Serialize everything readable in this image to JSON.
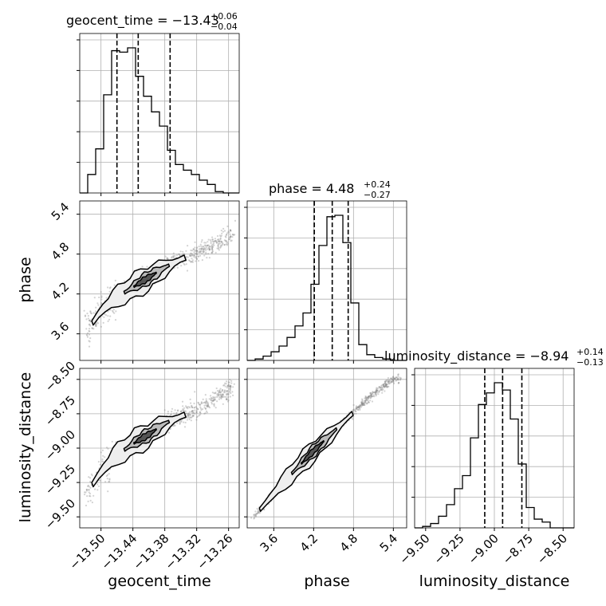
{
  "chart_data": {
    "type": "corner",
    "parameters": [
      "geocent_time",
      "phase",
      "luminosity_distance"
    ],
    "titles": [
      {
        "text": "geocent_time = −13.43",
        "sup": "+0.06",
        "sub": "−0.04"
      },
      {
        "text": "phase = 4.48",
        "sup": "+0.24",
        "sub": "−0.27"
      },
      {
        "text": "luminosity_distance = −8.94",
        "sup": "+0.14",
        "sub": "−0.13"
      }
    ],
    "axis_labels": {
      "geocent_time": "geocent_time",
      "phase": "phase",
      "luminosity_distance": "luminosity_distance"
    },
    "ranges": {
      "geocent_time": [
        -13.54,
        -13.24
      ],
      "phase": [
        3.2,
        5.6
      ],
      "luminosity_distance": [
        -9.58,
        -8.42
      ]
    },
    "ticks": {
      "geocent_time": [
        -13.5,
        -13.44,
        -13.38,
        -13.32,
        -13.26
      ],
      "phase": [
        3.6,
        4.2,
        4.8,
        5.4
      ],
      "luminosity_distance": [
        -9.5,
        -9.25,
        -9.0,
        -8.75,
        -8.5
      ]
    },
    "tick_labels": {
      "geocent_time": [
        "−13.50",
        "−13.44",
        "−13.38",
        "−13.32",
        "−13.26"
      ],
      "phase": [
        "3.6",
        "4.2",
        "4.8",
        "5.4"
      ],
      "luminosity_distance": [
        "−9.50",
        "−9.25",
        "−9.00",
        "−8.75",
        "−8.50"
      ]
    },
    "quantiles": {
      "geocent_time": [
        -13.47,
        -13.43,
        -13.37
      ],
      "phase": [
        4.21,
        4.48,
        4.72
      ],
      "luminosity_distance": [
        -9.07,
        -8.94,
        -8.8
      ]
    },
    "histograms": {
      "geocent_time": {
        "edges": [
          -13.54,
          -13.525,
          -13.51,
          -13.495,
          -13.48,
          -13.465,
          -13.45,
          -13.435,
          -13.42,
          -13.405,
          -13.39,
          -13.375,
          -13.36,
          -13.345,
          -13.33,
          -13.315,
          -13.3,
          -13.285,
          -13.27,
          -13.255,
          -13.24
        ],
        "counts": [
          0,
          0.13,
          0.31,
          0.69,
          1.0,
          0.99,
          1.02,
          0.82,
          0.68,
          0.57,
          0.47,
          0.3,
          0.2,
          0.16,
          0.13,
          0.09,
          0.06,
          0.01,
          0,
          0
        ]
      },
      "phase": {
        "edges": [
          3.2,
          3.32,
          3.44,
          3.56,
          3.68,
          3.8,
          3.92,
          4.04,
          4.16,
          4.28,
          4.4,
          4.52,
          4.64,
          4.76,
          4.88,
          5.0,
          5.12,
          5.24,
          5.36,
          5.48,
          5.6
        ],
        "counts": [
          0,
          0.01,
          0.03,
          0.06,
          0.1,
          0.16,
          0.24,
          0.33,
          0.53,
          0.8,
          1.0,
          1.01,
          0.82,
          0.4,
          0.11,
          0.04,
          0.02,
          0.01,
          0,
          0
        ]
      },
      "luminosity_distance": {
        "edges": [
          -9.58,
          -9.522,
          -9.464,
          -9.406,
          -9.348,
          -9.29,
          -9.232,
          -9.174,
          -9.116,
          -9.058,
          -9.0,
          -8.942,
          -8.884,
          -8.826,
          -8.768,
          -8.71,
          -8.652,
          -8.594,
          -8.536,
          -8.478,
          -8.42
        ],
        "counts": [
          0,
          0.01,
          0.03,
          0.08,
          0.16,
          0.27,
          0.36,
          0.62,
          0.85,
          0.93,
          1.0,
          0.95,
          0.75,
          0.44,
          0.14,
          0.06,
          0.04,
          0,
          0,
          0
        ]
      }
    },
    "ridges": {
      "phase_vs_geocent_time": {
        "x": [
          -13.53,
          -13.5,
          -13.47,
          -13.44,
          -13.41,
          -13.38,
          -13.35,
          -13.32,
          -13.29,
          -13.26,
          -13.245
        ],
        "y": [
          3.6,
          3.95,
          4.15,
          4.3,
          4.45,
          4.6,
          4.72,
          4.82,
          4.92,
          5.05,
          5.15
        ]
      },
      "luminosity_distance_vs_geocent_time": {
        "x": [
          -13.53,
          -13.5,
          -13.47,
          -13.44,
          -13.41,
          -13.38,
          -13.35,
          -13.32,
          -13.29,
          -13.26,
          -13.245
        ],
        "y": [
          -9.35,
          -9.17,
          -9.05,
          -8.97,
          -8.9,
          -8.82,
          -8.77,
          -8.72,
          -8.65,
          -8.58,
          -8.52
        ]
      },
      "luminosity_distance_vs_phase": {
        "x": [
          3.3,
          3.6,
          3.9,
          4.2,
          4.5,
          4.8,
          5.1,
          5.4
        ],
        "y": [
          -9.5,
          -9.33,
          -9.17,
          -9.02,
          -8.88,
          -8.74,
          -8.6,
          -8.5
        ]
      }
    },
    "grid": true
  }
}
